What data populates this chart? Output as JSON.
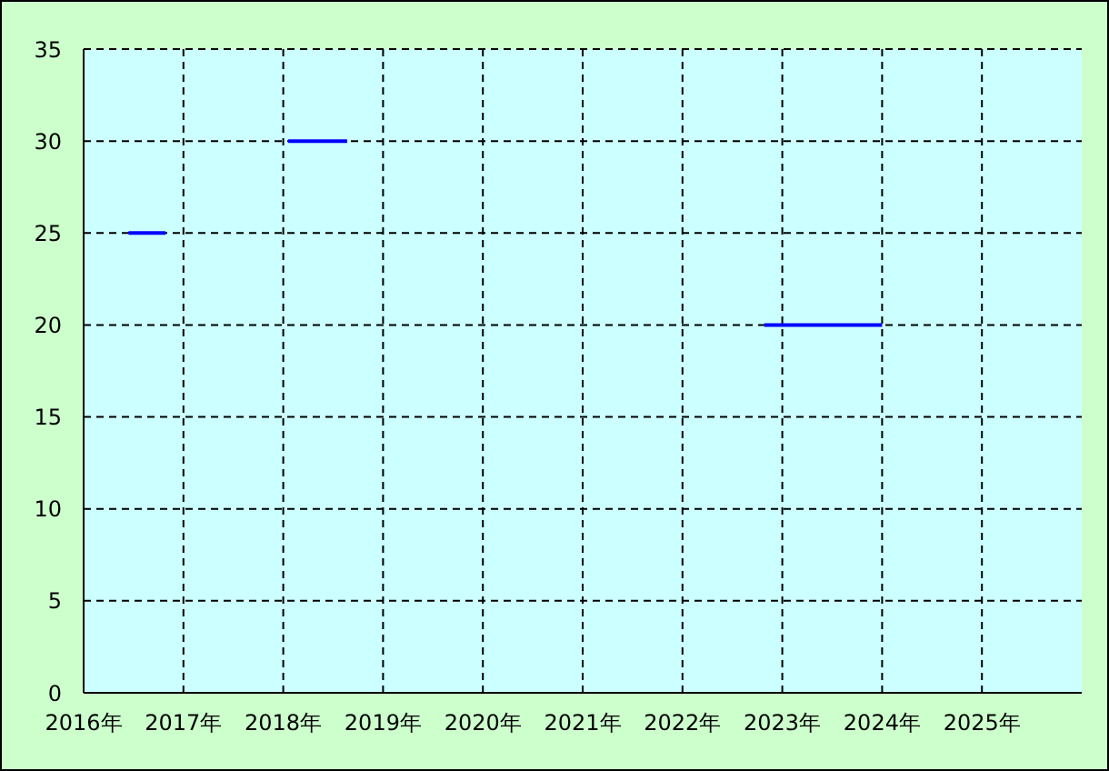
{
  "chart_data": {
    "type": "line",
    "x": [
      2016.45,
      2016.82,
      2016.83,
      2018.05,
      2018.64,
      2018.65,
      2022.82,
      2024.0
    ],
    "series": [
      {
        "color": "#0000ff",
        "values": [
          25,
          25,
          null,
          30,
          30,
          null,
          20,
          20
        ]
      }
    ],
    "xlim": [
      2016,
      2026
    ],
    "xticks": [
      {
        "value": 2016,
        "label": "2016年"
      },
      {
        "value": 2017,
        "label": "2017年"
      },
      {
        "value": 2018,
        "label": "2018年"
      },
      {
        "value": 2019,
        "label": "2019年"
      },
      {
        "value": 2020,
        "label": "2020年"
      },
      {
        "value": 2021,
        "label": "2021年"
      },
      {
        "value": 2022,
        "label": "2022年"
      },
      {
        "value": 2023,
        "label": "2023年"
      },
      {
        "value": 2024,
        "label": "2024年"
      },
      {
        "value": 2025,
        "label": "2025年"
      }
    ],
    "ylim": [
      0,
      35
    ],
    "yticks": [
      0,
      5,
      10,
      15,
      20,
      25,
      30,
      35
    ],
    "grid": true,
    "marker": "none",
    "line_style": "solid",
    "legend": false
  }
}
